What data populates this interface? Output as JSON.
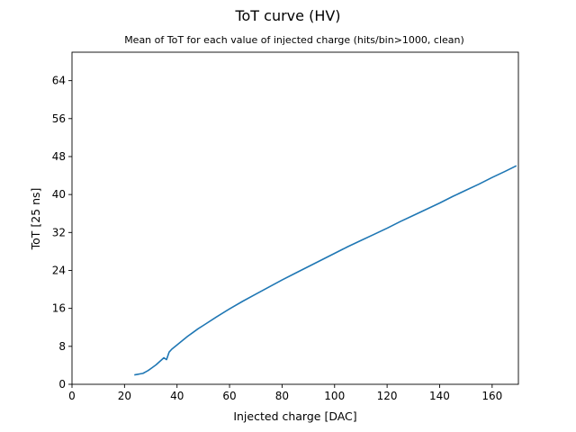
{
  "chart_data": {
    "type": "line",
    "title": "ToT curve (HV)",
    "subtitle": "Mean of ToT for each value of injected charge (hits/bin>1000, clean)",
    "xlabel": "Injected charge [DAC]",
    "ylabel": "ToT [25 ns]",
    "xlim": [
      0,
      170
    ],
    "ylim": [
      0,
      70
    ],
    "xticks": [
      0,
      20,
      40,
      60,
      80,
      100,
      120,
      140,
      160
    ],
    "yticks": [
      0,
      8,
      16,
      24,
      32,
      40,
      48,
      56,
      64
    ],
    "grid": false,
    "legend": "none",
    "series": [
      {
        "color": "#1f77b4",
        "x": [
          24,
          25,
          26,
          27,
          28,
          29,
          30,
          31,
          32,
          33,
          34,
          35,
          36,
          37,
          38,
          40,
          42,
          44,
          46,
          48,
          50,
          55,
          60,
          65,
          70,
          75,
          80,
          85,
          90,
          95,
          100,
          105,
          110,
          115,
          120,
          125,
          130,
          135,
          140,
          145,
          150,
          155,
          160,
          165,
          169
        ],
        "y": [
          2.0,
          2.1,
          2.2,
          2.3,
          2.6,
          2.9,
          3.3,
          3.7,
          4.1,
          4.6,
          5.1,
          5.6,
          5.2,
          6.8,
          7.4,
          8.3,
          9.2,
          10.1,
          10.9,
          11.7,
          12.4,
          14.2,
          15.9,
          17.5,
          19.0,
          20.5,
          22.0,
          23.4,
          24.8,
          26.2,
          27.6,
          29.0,
          30.3,
          31.6,
          32.9,
          34.3,
          35.6,
          36.9,
          38.2,
          39.6,
          40.9,
          42.2,
          43.6,
          44.9,
          46.0
        ]
      }
    ]
  }
}
